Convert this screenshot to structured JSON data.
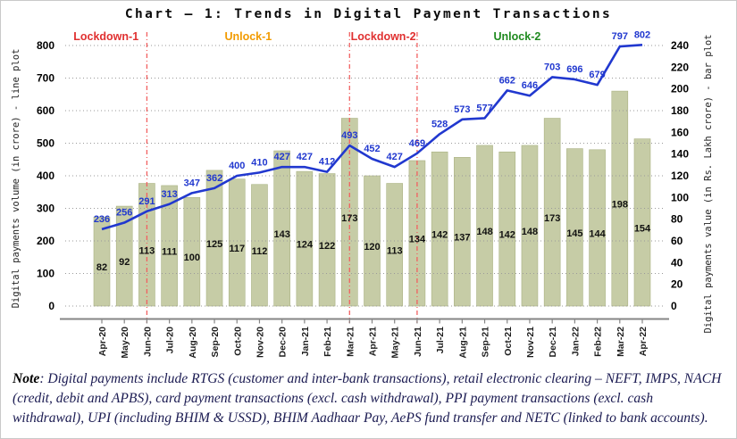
{
  "chart_data": {
    "type": "bar+line",
    "title": "Chart – 1: Trends in Digital Payment Transactions",
    "categories": [
      "Apr-20",
      "May-20",
      "Jun-20",
      "Jul-20",
      "Aug-20",
      "Sep-20",
      "Oct-20",
      "Nov-20",
      "Dec-20",
      "Jan-21",
      "Feb-21",
      "Mar-21",
      "Apr-21",
      "May-21",
      "Jun-21",
      "Jul-21",
      "Aug-21",
      "Sep-21",
      "Oct-21",
      "Nov-21",
      "Dec-21",
      "Jan-22",
      "Feb-22",
      "Mar-22",
      "Apr-22"
    ],
    "series": [
      {
        "name": "Digital payments volume (in crore) - line plot",
        "type": "line",
        "axis": "left",
        "color": "#2138cf",
        "values": [
          236,
          256,
          291,
          313,
          347,
          362,
          400,
          410,
          427,
          427,
          412,
          493,
          452,
          427,
          469,
          528,
          573,
          577,
          662,
          646,
          703,
          696,
          679,
          797,
          802
        ]
      },
      {
        "name": "Digital payments value (in Rs. Lakh crore) - bar plot",
        "type": "bar",
        "axis": "right",
        "color": "#c6cca6",
        "values": [
          82,
          92,
          113,
          111,
          100,
          125,
          117,
          112,
          143,
          124,
          122,
          173,
          120,
          113,
          134,
          142,
          137,
          148,
          142,
          148,
          173,
          145,
          144,
          198,
          154
        ]
      }
    ],
    "left_axis": {
      "label": "Digital payments volume (in crore) - line plot",
      "min": 0,
      "max": 800,
      "step": 100
    },
    "right_axis": {
      "label": "Digital payments value (in Rs. Lakh crore) - bar plot",
      "min": 0,
      "max": 240,
      "step": 20
    },
    "grid": true,
    "legend_position": "none",
    "divider_color": "#f26060",
    "divider_indices": [
      2,
      11,
      14
    ],
    "periods": [
      {
        "label": "Lockdown-1",
        "color": "#e03030"
      },
      {
        "label": "Unlock-1",
        "color": "#f29b00"
      },
      {
        "label": "Lockdown-2",
        "color": "#e03030"
      },
      {
        "label": "Unlock-2",
        "color": "#1f8a1f"
      }
    ],
    "bar_label_color": "#111111",
    "axis_tick_color": "#000000"
  },
  "note": {
    "label": "Note",
    "text": ": Digital payments include RTGS (customer and inter-bank transactions), retail electronic clearing – NEFT, IMPS, NACH (credit, debit and APBS), card payment transactions (excl. cash withdrawal), PPI payment transactions (excl. cash withdrawal), UPI (including BHIM & USSD), BHIM Aadhaar Pay, AePS fund transfer and NETC (linked to bank accounts)."
  }
}
